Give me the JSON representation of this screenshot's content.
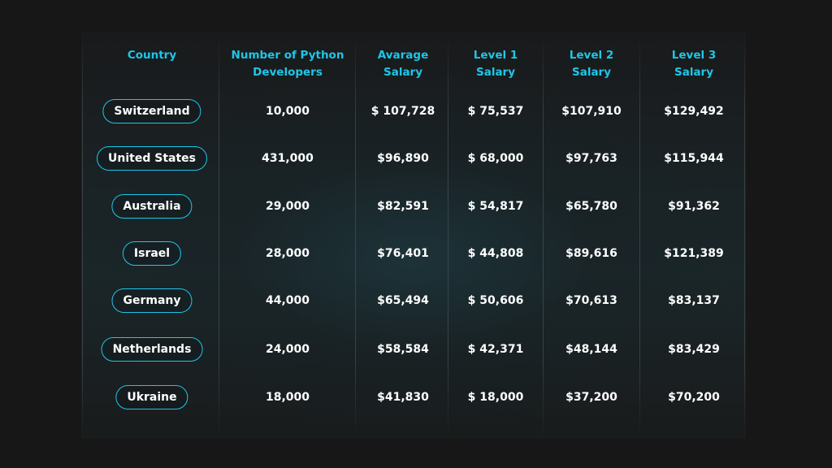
{
  "chart_data": {
    "type": "table",
    "columns": [
      {
        "key": "country",
        "label": "Country"
      },
      {
        "key": "developers",
        "label": "Number of Python\nDevelopers"
      },
      {
        "key": "average_salary",
        "label": "Avarage\nSalary"
      },
      {
        "key": "level1_salary",
        "label": "Level 1\nSalary"
      },
      {
        "key": "level2_salary",
        "label": "Level 2\nSalary"
      },
      {
        "key": "level3_salary",
        "label": "Level 3\nSalary"
      }
    ],
    "rows": [
      {
        "country": "Switzerland",
        "developers": "10,000",
        "average_salary": "$ 107,728",
        "level1_salary": "$ 75,537",
        "level2_salary": "$107,910",
        "level3_salary": "$129,492"
      },
      {
        "country": "United States",
        "developers": "431,000",
        "average_salary": "$96,890",
        "level1_salary": "$ 68,000",
        "level2_salary": "$97,763",
        "level3_salary": "$115,944"
      },
      {
        "country": "Australia",
        "developers": "29,000",
        "average_salary": "$82,591",
        "level1_salary": "$ 54,817",
        "level2_salary": "$65,780",
        "level3_salary": "$91,362"
      },
      {
        "country": "Israel",
        "developers": "28,000",
        "average_salary": "$76,401",
        "level1_salary": "$ 44,808",
        "level2_salary": "$89,616",
        "level3_salary": "$121,389"
      },
      {
        "country": "Germany",
        "developers": "44,000",
        "average_salary": "$65,494",
        "level1_salary": "$ 50,606",
        "level2_salary": "$70,613",
        "level3_salary": "$83,137"
      },
      {
        "country": "Netherlands",
        "developers": "24,000",
        "average_salary": "$58,584",
        "level1_salary": "$ 42,371",
        "level2_salary": "$48,144",
        "level3_salary": "$83,429"
      },
      {
        "country": "Ukraine",
        "developers": "18,000",
        "average_salary": "$41,830",
        "level1_salary": "$ 18,000",
        "level2_salary": "$37,200",
        "level3_salary": "$70,200"
      }
    ]
  },
  "colors": {
    "background": "#171717",
    "header_text": "#1ec6e8",
    "cell_text": "#ffffff",
    "pill_border": "#1ec6e8"
  }
}
